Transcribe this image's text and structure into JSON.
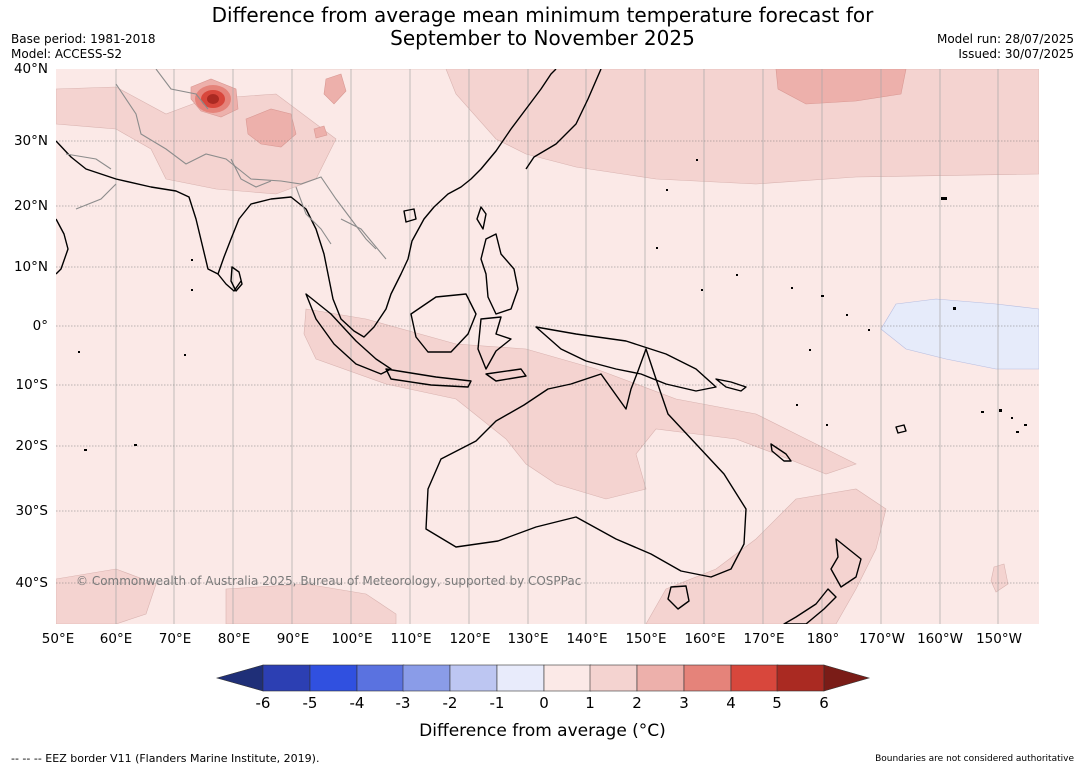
{
  "title_line1": "Difference from average mean minimum temperature forecast for",
  "title_line2": "September to November 2025",
  "meta": {
    "base_period": "Base period: 1981-2018",
    "model": "Model: ACCESS-S2",
    "model_run": "Model run: 28/07/2025",
    "issued": "Issued: 30/07/2025"
  },
  "map": {
    "region": "Asia-Pacific / Australia",
    "lat_labels": [
      "40°N",
      "30°N",
      "20°N",
      "10°N",
      "0°",
      "10°S",
      "20°S",
      "30°S",
      "40°S"
    ],
    "lon_labels": [
      "50°E",
      "60°E",
      "70°E",
      "80°E",
      "90°E",
      "100°E",
      "110°E",
      "120°E",
      "130°E",
      "140°E",
      "150°E",
      "160°E",
      "170°E",
      "180°",
      "170°W",
      "160°W",
      "150°W"
    ],
    "copyright": "© Commonwealth of Australia 2025, Bureau of Meteorology, supported by COSPPac",
    "colors": {
      "background_0_1": "#fbe9e7",
      "class_1_2": "#f4d3d0",
      "class_2_3": "#edb0ab",
      "class_3_4": "#e5837a",
      "class_4_5": "#d8473c",
      "class_5_6": "#aa2a22",
      "class_m1_0": "#e6ebfa",
      "land": "#000000",
      "borders": "#8c8c8c"
    }
  },
  "legend": {
    "title": "Difference from average (°C)",
    "ticks": [
      "-6",
      "-5",
      "-4",
      "-3",
      "-2",
      "-1",
      "0",
      "1",
      "2",
      "3",
      "4",
      "5",
      "6"
    ],
    "colors": [
      "#1f2f78",
      "#2c3fb3",
      "#3050e0",
      "#5a72e0",
      "#8a9ce8",
      "#bdc6f2",
      "#e8ebfb",
      "#fbe9e7",
      "#f4d3d0",
      "#edb0ab",
      "#e5837a",
      "#d8473c",
      "#aa2a22",
      "#7a1c17"
    ]
  },
  "footer": {
    "left": "--  --  -- EEZ border V11 (Flanders Marine Institute, 2019).",
    "right": "Boundaries are not considered authoritative"
  }
}
